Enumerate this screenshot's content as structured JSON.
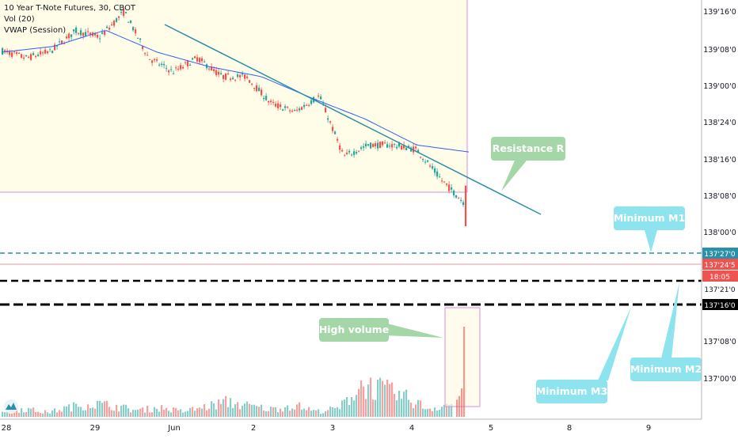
{
  "header": {
    "symbol_line": "10 Year T-Note Futures, 30, CBOT",
    "indicator_vol": "Vol (20)",
    "indicator_vwap": "VWAP (Session)"
  },
  "colors": {
    "up": "#26a69a",
    "down": "#ef5350",
    "vwap": "#2962ff",
    "trendline": "#2a8fa8",
    "callout_green": "#a5d6a7",
    "callout_cyan": "#8de3ee",
    "highlight_fill": "#fffde7",
    "highlight_border": "#ce93d8",
    "current_price": "#ef5350"
  },
  "chart_data": {
    "type": "candlestick",
    "y_unit": "price in points'32nds",
    "ylim": [
      137.3,
      139.55
    ],
    "y_ticks": [
      "139'16'0",
      "139'08'0",
      "139'00'0",
      "138'24'0",
      "138'16'0",
      "138'08'0",
      "138'00'0",
      "137'08'0",
      "137'00'0"
    ],
    "x_ticks": [
      "28",
      "29",
      "Jun",
      "2",
      "3",
      "4",
      "5",
      "8",
      "9"
    ],
    "price_path": [
      [
        139.0,
        139.22
      ],
      [
        139.02,
        139.08
      ],
      [
        139.1,
        139.12
      ],
      [
        139.22,
        139.35
      ],
      [
        139.18,
        139.28
      ],
      [
        139.42,
        139.48
      ],
      [
        139.15,
        138.95
      ],
      [
        139.0,
        138.86
      ],
      [
        139.05,
        139.05
      ],
      [
        138.86,
        138.92
      ],
      [
        138.93,
        138.85
      ],
      [
        138.72,
        138.6
      ],
      [
        138.55,
        138.62
      ],
      [
        138.9,
        138.55
      ],
      [
        138.2,
        138.2
      ],
      [
        138.28,
        138.32
      ],
      [
        138.32,
        138.28
      ],
      [
        138.2,
        138.32
      ],
      [
        138.15,
        137.85
      ],
      [
        137.82,
        137.76
      ]
    ],
    "vwap_path": [
      [
        139.05,
        139.15
      ],
      [
        139.1,
        139.2
      ],
      [
        139.28,
        139.3
      ],
      [
        139.2,
        139.0
      ],
      [
        139.0,
        138.95
      ],
      [
        138.9,
        138.88
      ],
      [
        138.75,
        138.65
      ],
      [
        138.6,
        138.45
      ],
      [
        138.3,
        138.3
      ],
      [
        138.28,
        138.2
      ]
    ],
    "volume": [
      0.12,
      0.15,
      0.08,
      0.18,
      0.25,
      0.2,
      0.12,
      0.17,
      0.1,
      0.18,
      0.28,
      0.2,
      0.14,
      0.22,
      0.1,
      0.16,
      0.6,
      0.5,
      0.35,
      0.15,
      0.25,
      1.0
    ]
  },
  "levels": {
    "current_price": "137'24'5",
    "countdown": "18:05",
    "m1_price": "137'27'0",
    "m2_price": "137'21'0",
    "m3_price": "137'16'0"
  },
  "annotations": {
    "resistance": "Resistance R",
    "minimum_m1": "Minimum M1",
    "minimum_m2": "Minimum M2",
    "minimum_m3": "Minimum M3",
    "high_volume": "High volume"
  },
  "logo": "TradingView"
}
